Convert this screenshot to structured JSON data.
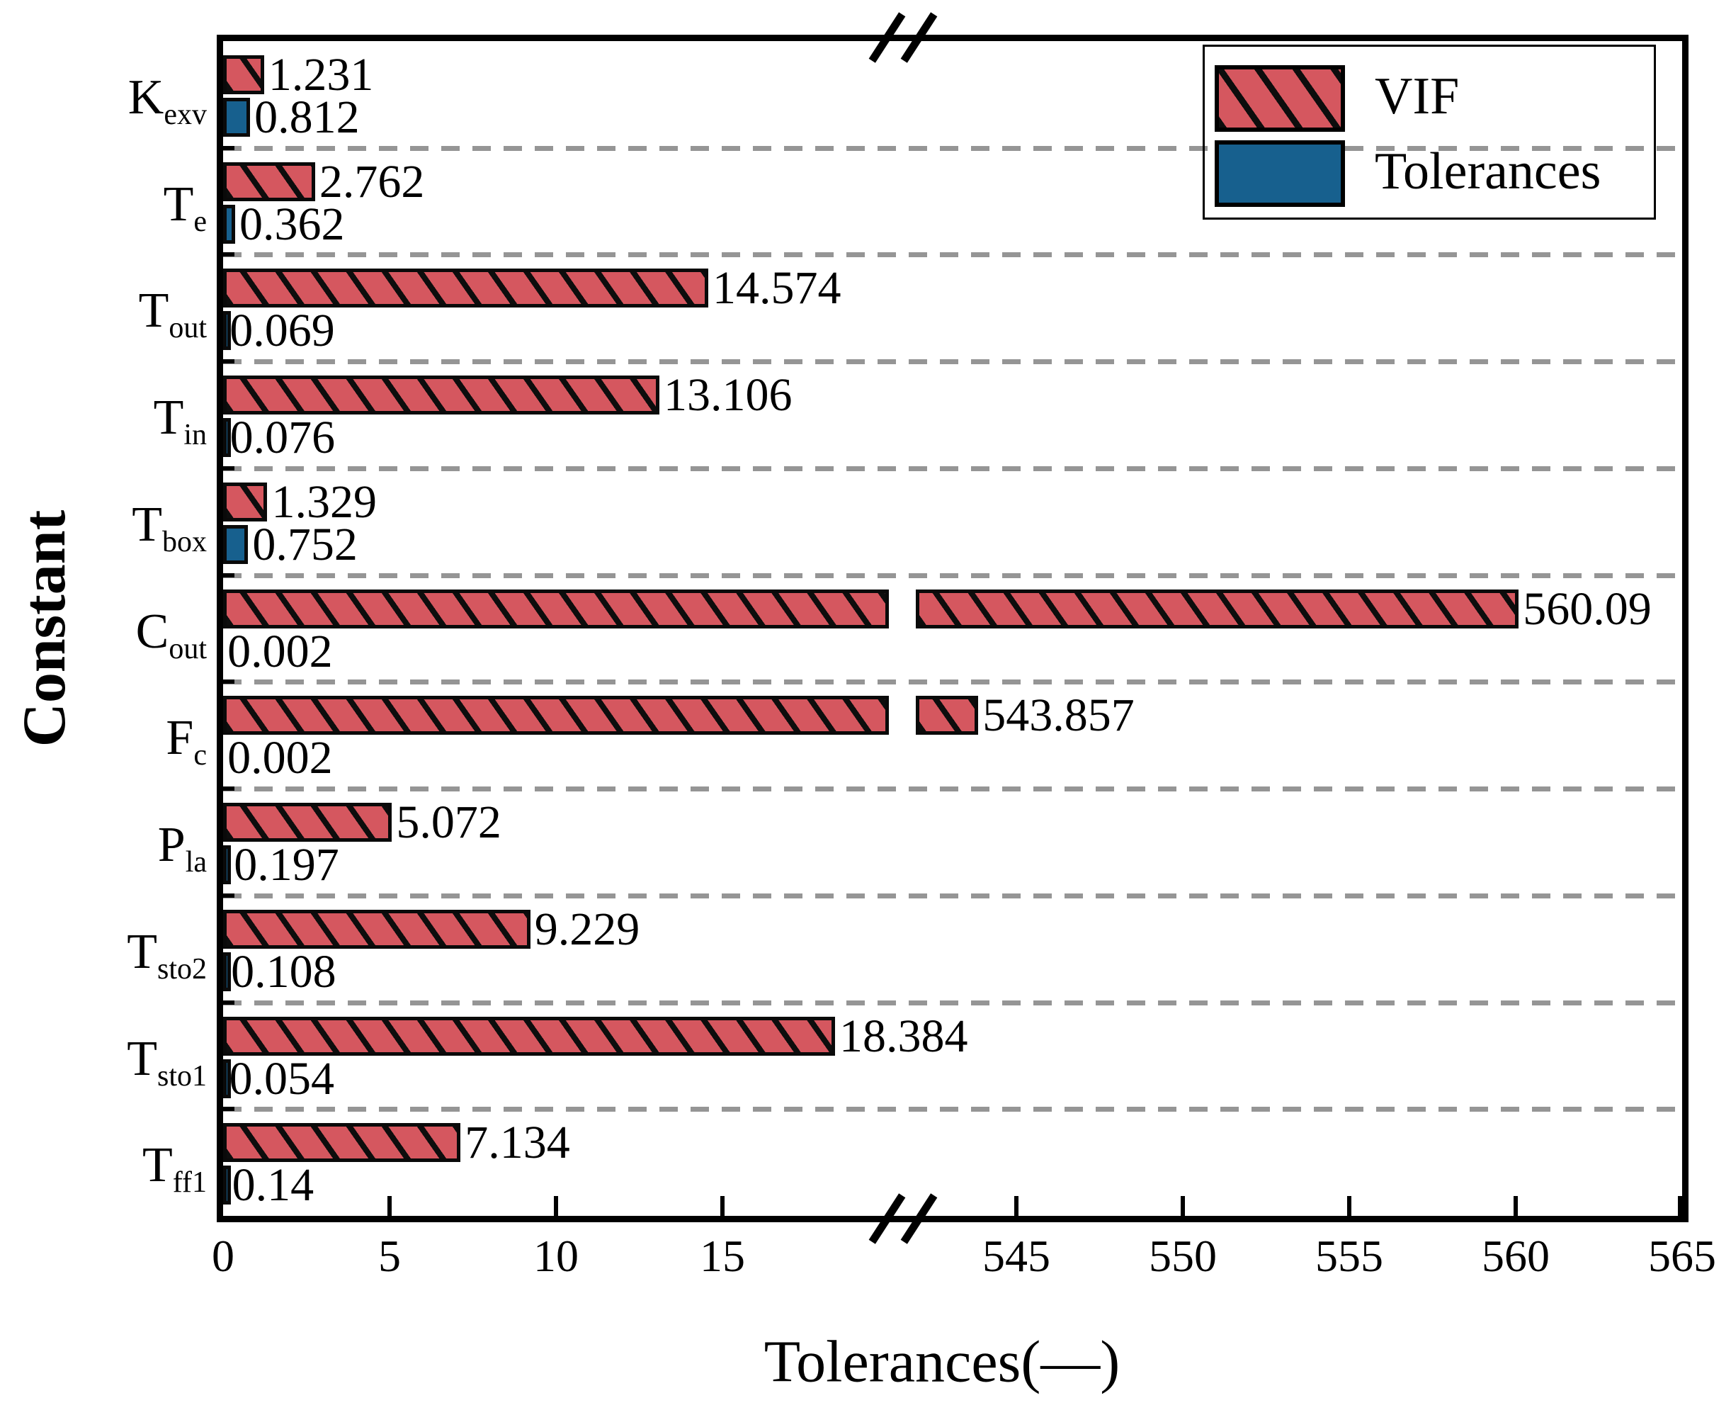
{
  "colors": {
    "vif_fill": "#d5575f",
    "tolerances_fill": "#17608e",
    "hatch_line": "#0d0d0d",
    "gridline": "#959595",
    "axis_line": "#000000",
    "text": "#000000"
  },
  "chart_data": {
    "type": "bar",
    "orientation": "horizontal",
    "title": "",
    "xlabel": "Tolerances(—)",
    "ylabel": "Constant",
    "legend_position": "top-right",
    "grid": "dashed horizontal separators between categories",
    "axis_break": {
      "broken": true,
      "left_segment_max": 20,
      "right_segment_min": 542,
      "right_segment_max": 565
    },
    "x_ticks_left": [
      0,
      5,
      10,
      15
    ],
    "x_ticks_right": [
      545,
      550,
      555,
      560,
      565
    ],
    "categories": [
      {
        "main": "K",
        "sub": "exv"
      },
      {
        "main": "T",
        "sub": "e"
      },
      {
        "main": "T",
        "sub": "out"
      },
      {
        "main": "T",
        "sub": "in"
      },
      {
        "main": "T",
        "sub": "box"
      },
      {
        "main": "C",
        "sub": "out"
      },
      {
        "main": "F",
        "sub": "c"
      },
      {
        "main": "P",
        "sub": "la"
      },
      {
        "main": "T",
        "sub": "sto2"
      },
      {
        "main": "T",
        "sub": "sto1"
      },
      {
        "main": "T",
        "sub": "ff1"
      }
    ],
    "series": [
      {
        "name": "VIF",
        "values": [
          1.231,
          2.762,
          14.574,
          13.106,
          1.329,
          560.09,
          543.857,
          5.072,
          9.229,
          18.384,
          7.134
        ],
        "value_labels": [
          "1.231",
          "2.762",
          "14.574",
          "13.106",
          "1.329",
          "560.09",
          "543.857",
          "5.072",
          "9.229",
          "18.384",
          "7.134"
        ]
      },
      {
        "name": "Tolerances",
        "values": [
          0.812,
          0.362,
          0.069,
          0.076,
          0.752,
          0.002,
          0.002,
          0.197,
          0.108,
          0.054,
          0.14
        ],
        "value_labels": [
          "0.812",
          "0.362",
          "0.069",
          "0.076",
          "0.752",
          "0.002",
          "0.002",
          "0.197",
          "0.108",
          "0.054",
          "0.14"
        ]
      }
    ]
  }
}
